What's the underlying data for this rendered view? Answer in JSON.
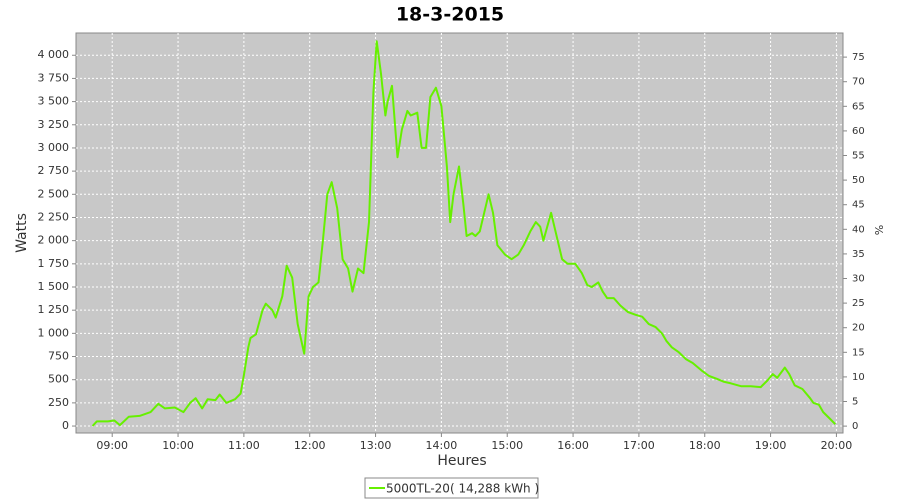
{
  "chart_data": {
    "type": "line",
    "title": "18-3-2015",
    "x_label": "Heures",
    "y_label": "Watts",
    "y2_label": "%",
    "x": [
      "08:42",
      "08:46",
      "08:56",
      "09:02",
      "09:07",
      "09:15",
      "09:25",
      "09:35",
      "09:42",
      "09:48",
      "09:57",
      "10:05",
      "10:11",
      "10:16",
      "10:22",
      "10:27",
      "10:34",
      "10:38",
      "10:44",
      "10:52",
      "10:57",
      "11:00",
      "11:04",
      "11:06",
      "11:11",
      "11:17",
      "11:20",
      "11:26",
      "11:29",
      "11:35",
      "11:39",
      "11:44",
      "11:49",
      "11:55",
      "11:59",
      "12:03",
      "12:08",
      "12:12",
      "12:16",
      "12:20",
      "12:25",
      "12:30",
      "12:35",
      "12:39",
      "12:44",
      "12:49",
      "12:54",
      "12:58",
      "13:01",
      "13:05",
      "13:09",
      "13:11",
      "13:15",
      "13:20",
      "13:24",
      "13:29",
      "13:32",
      "13:38",
      "13:42",
      "13:46",
      "13:50",
      "13:55",
      "14:00",
      "14:05",
      "14:08",
      "14:11",
      "14:16",
      "14:20",
      "14:23",
      "14:28",
      "14:31",
      "14:35",
      "14:39",
      "14:43",
      "14:47",
      "14:51",
      "14:58",
      "15:04",
      "15:10",
      "15:15",
      "15:21",
      "15:26",
      "15:30",
      "15:33",
      "15:40",
      "15:44",
      "15:50",
      "15:55",
      "16:02",
      "16:08",
      "16:13",
      "16:17",
      "16:23",
      "16:27",
      "16:31",
      "16:37",
      "16:43",
      "16:50",
      "16:57",
      "17:03",
      "17:09",
      "17:15",
      "17:21",
      "17:25",
      "17:30",
      "17:36",
      "17:43",
      "17:49",
      "17:57",
      "18:04",
      "18:11",
      "18:17",
      "18:24",
      "18:33",
      "18:42",
      "18:51",
      "18:57",
      "19:02",
      "19:06",
      "19:13",
      "19:17",
      "19:22",
      "19:29",
      "19:36",
      "19:39",
      "19:44",
      "19:48",
      "19:54",
      "19:59"
    ],
    "series": [
      {
        "name": "5000TL-20( 14,288 kWh )",
        "color": "#66f000",
        "values": [
          0,
          50,
          50,
          60,
          10,
          100,
          110,
          150,
          240,
          190,
          200,
          150,
          250,
          300,
          190,
          290,
          280,
          340,
          250,
          290,
          350,
          550,
          850,
          950,
          990,
          1250,
          1320,
          1250,
          1170,
          1400,
          1730,
          1600,
          1100,
          780,
          1400,
          1500,
          1550,
          2000,
          2500,
          2630,
          2350,
          1800,
          1700,
          1450,
          1700,
          1650,
          2200,
          3600,
          4150,
          3800,
          3350,
          3500,
          3670,
          2900,
          3200,
          3400,
          3350,
          3380,
          3000,
          3000,
          3550,
          3650,
          3450,
          2800,
          2200,
          2500,
          2800,
          2400,
          2050,
          2080,
          2050,
          2100,
          2300,
          2500,
          2300,
          1950,
          1850,
          1800,
          1850,
          1950,
          2100,
          2200,
          2150,
          2000,
          2300,
          2100,
          1800,
          1750,
          1750,
          1650,
          1520,
          1500,
          1550,
          1450,
          1380,
          1380,
          1300,
          1230,
          1200,
          1180,
          1100,
          1070,
          1000,
          920,
          850,
          800,
          720,
          680,
          600,
          540,
          510,
          480,
          460,
          430,
          430,
          420,
          490,
          560,
          520,
          630,
          560,
          440,
          400,
          300,
          250,
          230,
          150,
          80,
          20
        ]
      }
    ],
    "xlim": [
      "08:27",
      "20:06"
    ],
    "xticks": [
      "09:00",
      "10:00",
      "11:00",
      "12:00",
      "13:00",
      "14:00",
      "15:00",
      "16:00",
      "17:00",
      "18:00",
      "19:00",
      "20:00"
    ],
    "ylim": [
      -75,
      4240
    ],
    "yticks": [
      0,
      250,
      500,
      750,
      {
        "value": 1000,
        "label": "1 000"
      },
      {
        "value": 1250,
        "label": "1 250"
      },
      {
        "value": 1500,
        "label": "1 500"
      },
      {
        "value": 1750,
        "label": "1 750"
      },
      {
        "value": 2000,
        "label": "2 000"
      },
      {
        "value": 2250,
        "label": "2 250"
      },
      {
        "value": 2500,
        "label": "2 500"
      },
      {
        "value": 2750,
        "label": "2 750"
      },
      {
        "value": 3000,
        "label": "3 000"
      },
      {
        "value": 3250,
        "label": "3 250"
      },
      {
        "value": 3500,
        "label": "3 500"
      },
      {
        "value": 3750,
        "label": "3 750"
      },
      {
        "value": 4000,
        "label": "4 000"
      }
    ],
    "y2lim": [
      -1.4,
      79.9
    ],
    "y2ticks": [
      0,
      5,
      10,
      15,
      20,
      25,
      30,
      35,
      40,
      45,
      50,
      55,
      60,
      65,
      70,
      75
    ],
    "grid": true,
    "legend": "bottom"
  }
}
